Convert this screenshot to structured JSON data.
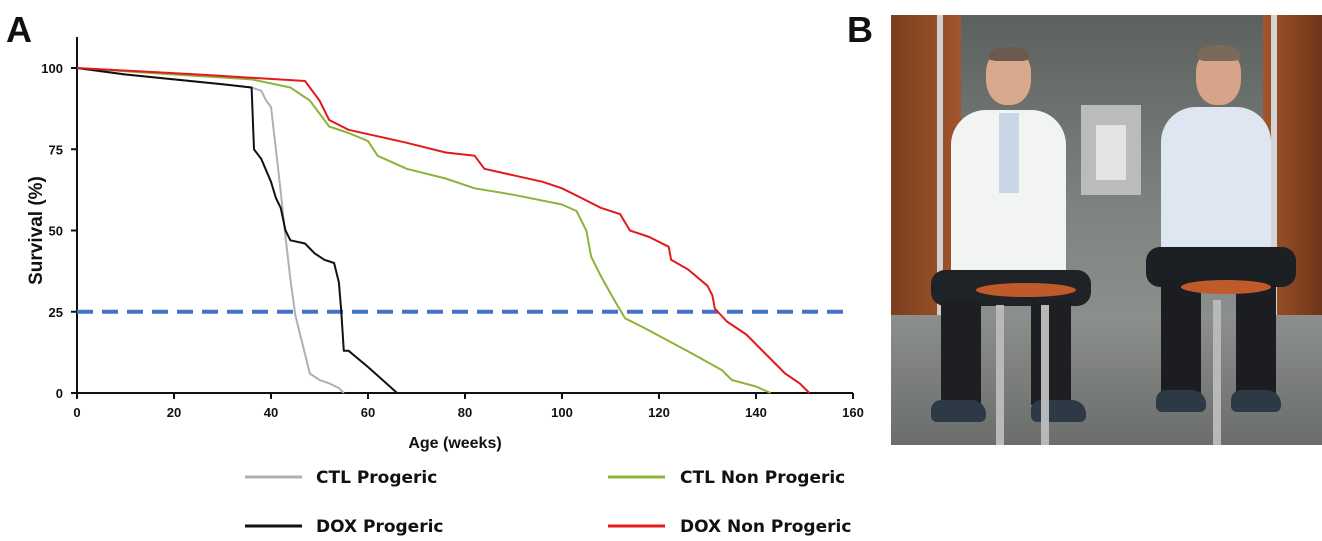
{
  "panels": {
    "a_label": "A",
    "b_label": "B"
  },
  "chart_data": {
    "type": "line",
    "title": "",
    "xlabel": "Age (weeks)",
    "ylabel": "Survival (%)",
    "xlim": [
      0,
      160
    ],
    "ylim": [
      0,
      100
    ],
    "x_ticks": [
      0,
      20,
      40,
      60,
      80,
      100,
      120,
      140,
      160
    ],
    "y_ticks": [
      0,
      25,
      50,
      75,
      100
    ],
    "grid": false,
    "legend_placement": "bottom",
    "reference_line": {
      "y": 25,
      "style": "dashed",
      "color": "#4472c4"
    },
    "series": [
      {
        "name": "CTL Progeric",
        "color": "#b0b0b0",
        "points": [
          [
            0,
            100
          ],
          [
            10,
            98
          ],
          [
            20,
            96.5
          ],
          [
            30,
            95
          ],
          [
            36,
            94
          ],
          [
            38,
            93
          ],
          [
            39,
            90
          ],
          [
            40,
            88
          ],
          [
            41,
            75
          ],
          [
            42,
            62
          ],
          [
            43,
            48
          ],
          [
            44,
            35
          ],
          [
            45,
            24
          ],
          [
            46,
            18
          ],
          [
            47,
            12
          ],
          [
            48,
            6
          ],
          [
            50,
            4
          ],
          [
            52,
            3
          ],
          [
            54,
            1.5
          ],
          [
            55,
            0
          ]
        ]
      },
      {
        "name": "CTL Non Progeric",
        "color": "#8db33a",
        "points": [
          [
            0,
            100
          ],
          [
            20,
            98
          ],
          [
            36,
            96.5
          ],
          [
            44,
            94
          ],
          [
            48,
            90
          ],
          [
            50,
            86
          ],
          [
            52,
            82
          ],
          [
            56,
            80
          ],
          [
            60,
            77.5
          ],
          [
            62,
            73
          ],
          [
            68,
            69
          ],
          [
            76,
            66
          ],
          [
            82,
            63
          ],
          [
            90,
            61
          ],
          [
            100,
            58
          ],
          [
            103,
            56
          ],
          [
            105,
            50
          ],
          [
            106,
            42
          ],
          [
            108,
            36
          ],
          [
            111,
            28
          ],
          [
            113,
            23
          ],
          [
            117,
            20
          ],
          [
            122,
            16
          ],
          [
            127,
            12
          ],
          [
            133,
            7
          ],
          [
            135,
            4
          ],
          [
            140,
            2
          ],
          [
            143,
            0
          ]
        ]
      },
      {
        "name": "DOX Progeric",
        "color": "#111111",
        "points": [
          [
            0,
            100
          ],
          [
            10,
            98
          ],
          [
            20,
            96.5
          ],
          [
            30,
            95
          ],
          [
            36,
            94
          ],
          [
            36.5,
            75
          ],
          [
            37.5,
            73
          ],
          [
            38,
            72
          ],
          [
            40,
            65
          ],
          [
            41,
            60
          ],
          [
            42,
            57
          ],
          [
            43,
            50
          ],
          [
            44,
            47
          ],
          [
            47,
            46
          ],
          [
            49,
            43
          ],
          [
            51,
            41
          ],
          [
            53,
            40
          ],
          [
            54,
            34
          ],
          [
            54.5,
            25
          ],
          [
            55,
            13
          ],
          [
            56,
            13
          ],
          [
            60,
            8
          ],
          [
            63,
            4
          ],
          [
            66,
            0
          ]
        ]
      },
      {
        "name": "DOX Non Progeric",
        "color": "#e3191b",
        "points": [
          [
            0,
            100
          ],
          [
            25,
            98
          ],
          [
            47,
            96
          ],
          [
            50,
            90
          ],
          [
            52,
            84
          ],
          [
            56,
            81
          ],
          [
            62,
            79
          ],
          [
            68,
            77
          ],
          [
            76,
            74
          ],
          [
            82,
            73
          ],
          [
            84,
            69
          ],
          [
            90,
            67
          ],
          [
            96,
            65
          ],
          [
            100,
            63
          ],
          [
            104,
            60
          ],
          [
            108,
            57
          ],
          [
            112,
            55
          ],
          [
            114,
            50
          ],
          [
            118,
            48
          ],
          [
            122,
            45
          ],
          [
            122.5,
            41
          ],
          [
            126,
            38
          ],
          [
            130,
            33
          ],
          [
            131,
            30
          ],
          [
            131.5,
            26
          ],
          [
            134,
            22
          ],
          [
            138,
            18
          ],
          [
            142,
            12
          ],
          [
            146,
            6
          ],
          [
            149,
            3
          ],
          [
            151,
            0
          ]
        ]
      }
    ]
  }
}
